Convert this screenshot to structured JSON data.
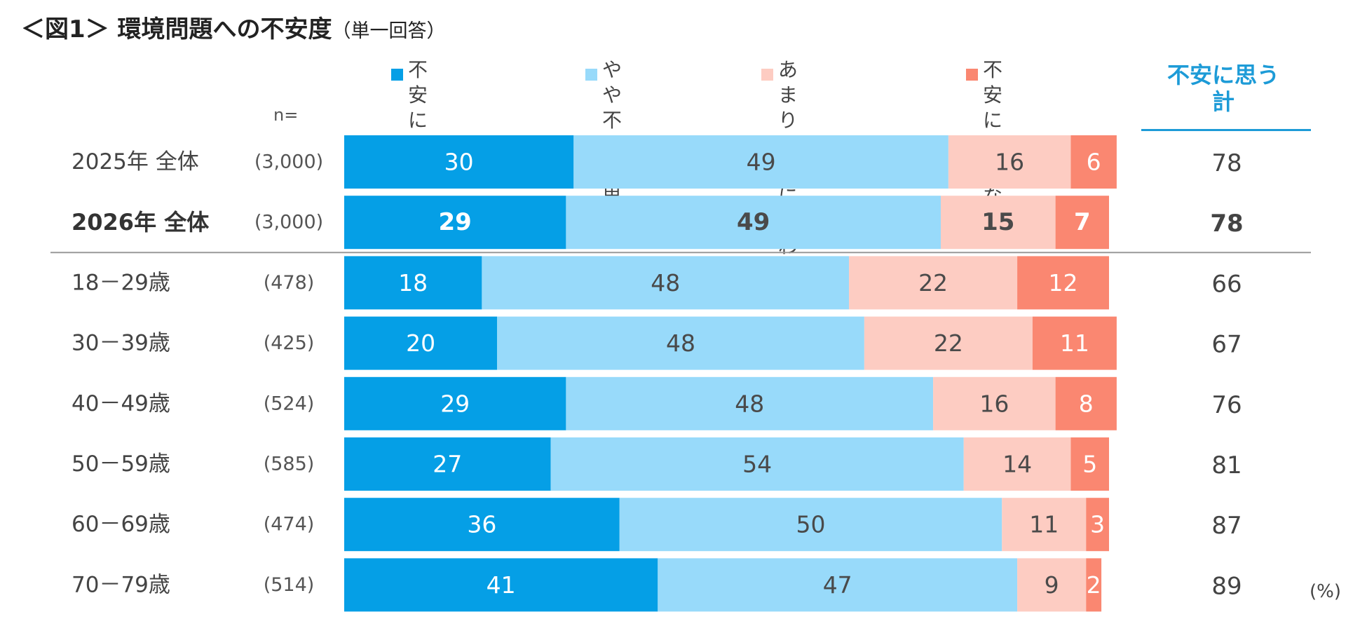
{
  "title": {
    "main": "＜図1＞ 環境問題への不安度",
    "sub": "（単一回答）"
  },
  "n_label": "n=",
  "unit": "(%)",
  "colors": {
    "s1": "#059FE6",
    "s2": "#98DAFA",
    "s3": "#FDCCC2",
    "s4": "#FA8771",
    "total_header": "#1D9BD7",
    "label_light": "#ffffff",
    "label_dark": "#4a4a4a",
    "separator": "#999999"
  },
  "total_header": "不安に思う\n計",
  "chart_data": {
    "type": "bar",
    "orientation": "horizontal",
    "stacked": true,
    "title": "＜図1＞ 環境問題への不安度（単一回答）",
    "xlim": [
      0,
      100
    ],
    "xlabel": "",
    "ylabel": "",
    "categories": [
      "2025年 全体",
      "2026年 全体",
      "18－29歳",
      "30－39歳",
      "40－49歳",
      "50－59歳",
      "60－69歳",
      "70－79歳"
    ],
    "n": [
      "(3,000)",
      "(3,000)",
      "(478)",
      "(425)",
      "(524)",
      "(585)",
      "(474)",
      "(514)"
    ],
    "bold_rows": [
      1
    ],
    "separator_after_row": 1,
    "series": [
      {
        "name": "不安に思う",
        "legend_label": "不安に思う",
        "values": [
          30,
          29,
          18,
          20,
          29,
          27,
          36,
          41
        ]
      },
      {
        "name": "やや不安に思う",
        "legend_label": "やや不安\nに思う",
        "values": [
          49,
          49,
          48,
          48,
          48,
          54,
          50,
          47
        ]
      },
      {
        "name": "あまり不安に思わない",
        "legend_label": "あまり不安に\n思わない",
        "values": [
          16,
          15,
          22,
          22,
          16,
          14,
          11,
          9
        ]
      },
      {
        "name": "不安に思わない",
        "legend_label": "不安に\n思わない",
        "values": [
          6,
          7,
          12,
          11,
          8,
          5,
          3,
          2
        ]
      }
    ],
    "totals": {
      "label": "不安に思う計",
      "values": [
        78,
        78,
        66,
        67,
        76,
        81,
        87,
        89
      ]
    }
  }
}
